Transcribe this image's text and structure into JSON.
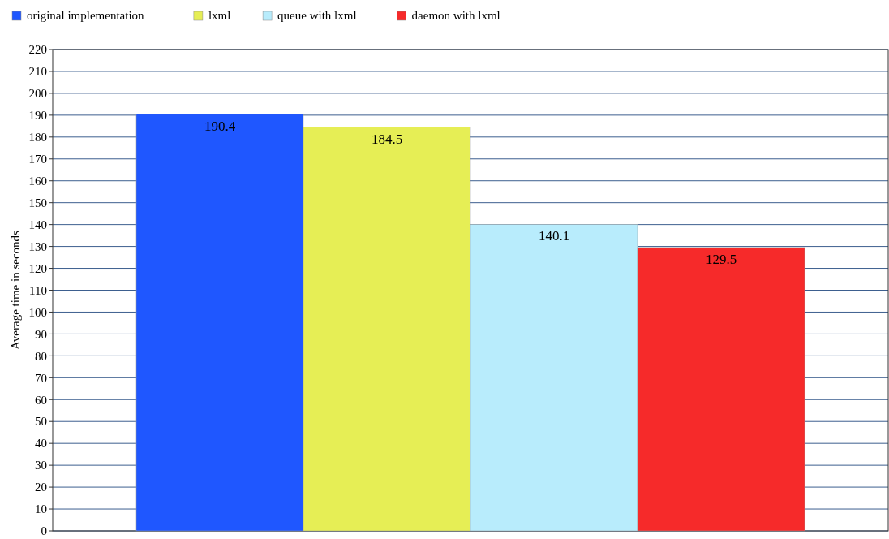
{
  "chart_data": {
    "type": "bar",
    "ylabel": "Average time in seconds",
    "categories": [
      null
    ],
    "series": [
      {
        "name": "original implementation",
        "color": "#1f57ff",
        "values": [
          190.4
        ]
      },
      {
        "name": "lxml",
        "color": "#e6ee55",
        "values": [
          184.5
        ]
      },
      {
        "name": "queue with lxml",
        "color": "#b8ecfc",
        "values": [
          140.1
        ]
      },
      {
        "name": "daemon with lxml",
        "color": "#f62a2a",
        "values": [
          129.5
        ]
      }
    ],
    "ylim": [
      0,
      220
    ],
    "yticks": [
      0,
      10,
      20,
      30,
      40,
      50,
      60,
      70,
      80,
      90,
      100,
      110,
      120,
      130,
      140,
      150,
      160,
      170,
      180,
      190,
      200,
      210,
      220
    ],
    "grid": "y",
    "legend": "top",
    "data_labels": true
  }
}
